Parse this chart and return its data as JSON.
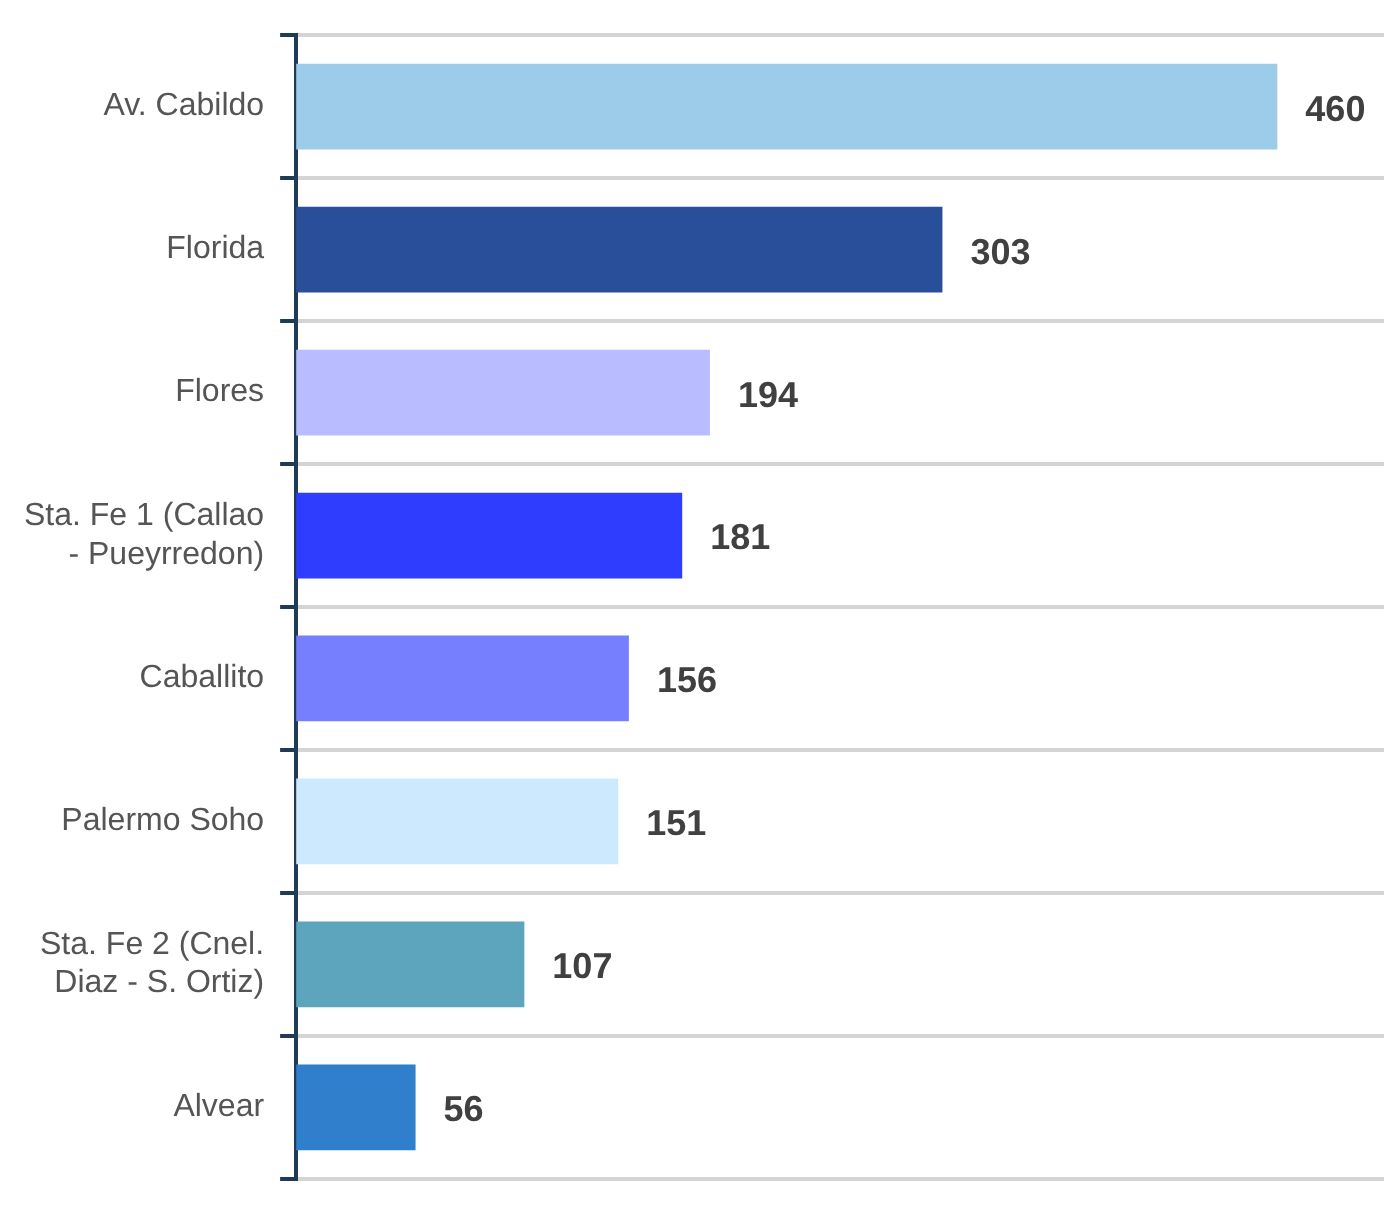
{
  "chart_data": {
    "type": "bar",
    "orientation": "horizontal",
    "categories": [
      "Av. Cabildo",
      "Florida",
      "Flores",
      "Sta. Fe 1 (Callao - Pueyrredon)",
      "Caballito",
      "Palermo Soho",
      "Sta. Fe 2 (Cnel. Diaz - S. Ortiz)",
      "Alvear"
    ],
    "values": [
      460,
      303,
      194,
      181,
      156,
      151,
      107,
      56
    ],
    "colors": [
      "#9dcbea",
      "#2a4f9a",
      "#b9bdff",
      "#2e3dff",
      "#7680ff",
      "#cce9fd",
      "#5da5bd",
      "#2f7fcc"
    ],
    "xlim": [
      0,
      510
    ],
    "data_labels": true,
    "grid": "y",
    "legend": false,
    "tick_labels": "y"
  }
}
